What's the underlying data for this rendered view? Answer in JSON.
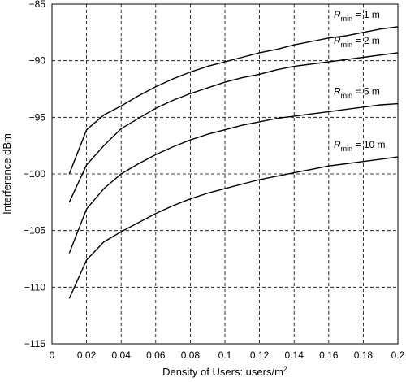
{
  "chart_data": {
    "type": "line",
    "xlabel": "Density of Users: users/m",
    "xlabel_sup": "2",
    "ylabel": "Interference dBm",
    "xlim": [
      0,
      0.2
    ],
    "ylim": [
      -115,
      -85
    ],
    "grid": true,
    "x_ticks": [
      0,
      0.02,
      0.04,
      0.06,
      0.08,
      0.1,
      0.12,
      0.14,
      0.16,
      0.18,
      0.2
    ],
    "x_tick_labels": [
      "0",
      "0.02",
      "0.04",
      "0.06",
      "0.08",
      "0.1",
      "0.12",
      "0.14",
      "0.16",
      "0.18",
      "0.2"
    ],
    "y_ticks": [
      -115,
      -110,
      -105,
      -100,
      -95,
      -90,
      -85
    ],
    "y_tick_labels": [
      "−115",
      "−110",
      "−105",
      "−100",
      "−95",
      "−90",
      "−85"
    ],
    "x": [
      0.01,
      0.02,
      0.03,
      0.04,
      0.05,
      0.06,
      0.07,
      0.08,
      0.09,
      0.1,
      0.11,
      0.12,
      0.13,
      0.14,
      0.15,
      0.16,
      0.17,
      0.18,
      0.19,
      0.2
    ],
    "series": [
      {
        "label_main": "R",
        "label_sub": "min",
        "label_rest": " = 1 m",
        "values": [
          -100.0,
          -96.1,
          -94.8,
          -94.0,
          -93.1,
          -92.3,
          -91.6,
          -91.0,
          -90.5,
          -90.1,
          -89.7,
          -89.3,
          -89.0,
          -88.6,
          -88.3,
          -88.0,
          -87.8,
          -87.5,
          -87.2,
          -87.0
        ]
      },
      {
        "label_main": "R",
        "label_sub": "min",
        "label_rest": " = 2 m",
        "values": [
          -102.5,
          -99.2,
          -97.5,
          -96.0,
          -95.1,
          -94.2,
          -93.5,
          -92.9,
          -92.4,
          -91.9,
          -91.5,
          -91.2,
          -90.8,
          -90.5,
          -90.3,
          -90.1,
          -89.9,
          -89.7,
          -89.5,
          -89.3
        ]
      },
      {
        "label_main": "R",
        "label_sub": "min",
        "label_rest": " = 5 m",
        "values": [
          -107.0,
          -103.1,
          -101.3,
          -100.0,
          -99.1,
          -98.3,
          -97.6,
          -97.0,
          -96.5,
          -96.1,
          -95.7,
          -95.4,
          -95.1,
          -94.9,
          -94.7,
          -94.5,
          -94.3,
          -94.1,
          -93.9,
          -93.8
        ]
      },
      {
        "label_main": "R",
        "label_sub": "min",
        "label_rest": " = 10 m",
        "values": [
          -111.0,
          -107.6,
          -106.0,
          -105.1,
          -104.3,
          -103.5,
          -102.8,
          -102.2,
          -101.7,
          -101.3,
          -100.9,
          -100.5,
          -100.2,
          -99.9,
          -99.6,
          -99.3,
          -99.1,
          -98.9,
          -98.7,
          -98.5
        ]
      }
    ]
  }
}
